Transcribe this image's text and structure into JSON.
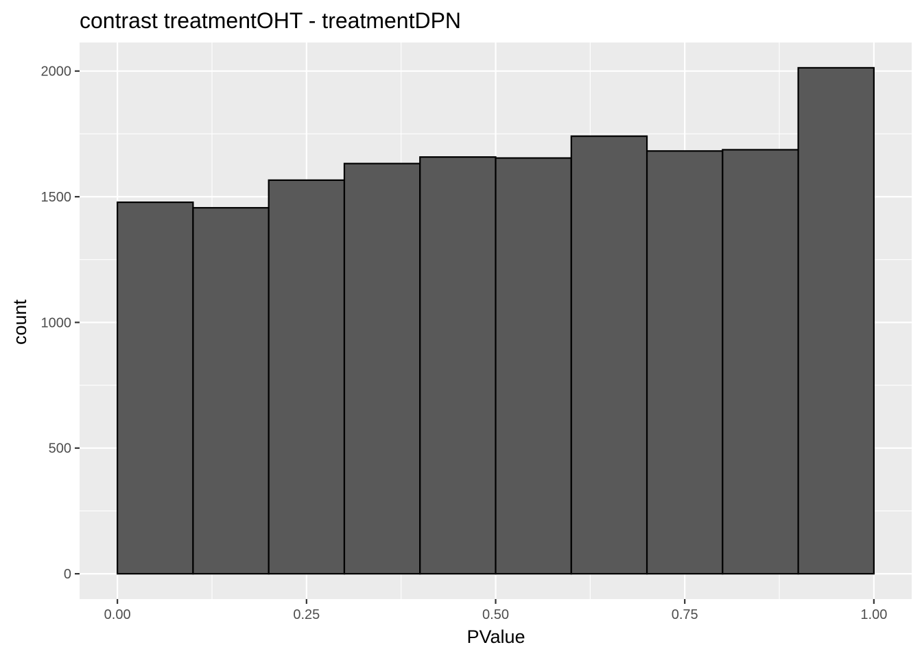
{
  "chart_data": {
    "type": "bar",
    "title": "contrast treatmentOHT - treatmentDPN",
    "xlabel": "PValue",
    "ylabel": "count",
    "bins": [
      {
        "x0": 0.0,
        "x1": 0.1,
        "count": 1478
      },
      {
        "x0": 0.1,
        "x1": 0.2,
        "count": 1456
      },
      {
        "x0": 0.2,
        "x1": 0.3,
        "count": 1566
      },
      {
        "x0": 0.3,
        "x1": 0.4,
        "count": 1632
      },
      {
        "x0": 0.4,
        "x1": 0.5,
        "count": 1658
      },
      {
        "x0": 0.5,
        "x1": 0.6,
        "count": 1654
      },
      {
        "x0": 0.6,
        "x1": 0.7,
        "count": 1741
      },
      {
        "x0": 0.7,
        "x1": 0.8,
        "count": 1682
      },
      {
        "x0": 0.8,
        "x1": 0.9,
        "count": 1687
      },
      {
        "x0": 0.9,
        "x1": 1.0,
        "count": 2013
      }
    ],
    "xlim": [
      -0.05,
      1.05
    ],
    "ylim": [
      -100.65,
      2113.65
    ],
    "x_ticks": [
      {
        "value": 0.0,
        "label": "0.00"
      },
      {
        "value": 0.25,
        "label": "0.25"
      },
      {
        "value": 0.5,
        "label": "0.50"
      },
      {
        "value": 0.75,
        "label": "0.75"
      },
      {
        "value": 1.0,
        "label": "1.00"
      }
    ],
    "y_ticks": [
      {
        "value": 0,
        "label": "0"
      },
      {
        "value": 500,
        "label": "500"
      },
      {
        "value": 1000,
        "label": "1000"
      },
      {
        "value": 1500,
        "label": "1500"
      },
      {
        "value": 2000,
        "label": "2000"
      }
    ],
    "grid": true,
    "colors": {
      "panel": "#ebebeb",
      "grid": "#ffffff",
      "bar_fill": "#595959",
      "bar_stroke": "#000000"
    }
  }
}
